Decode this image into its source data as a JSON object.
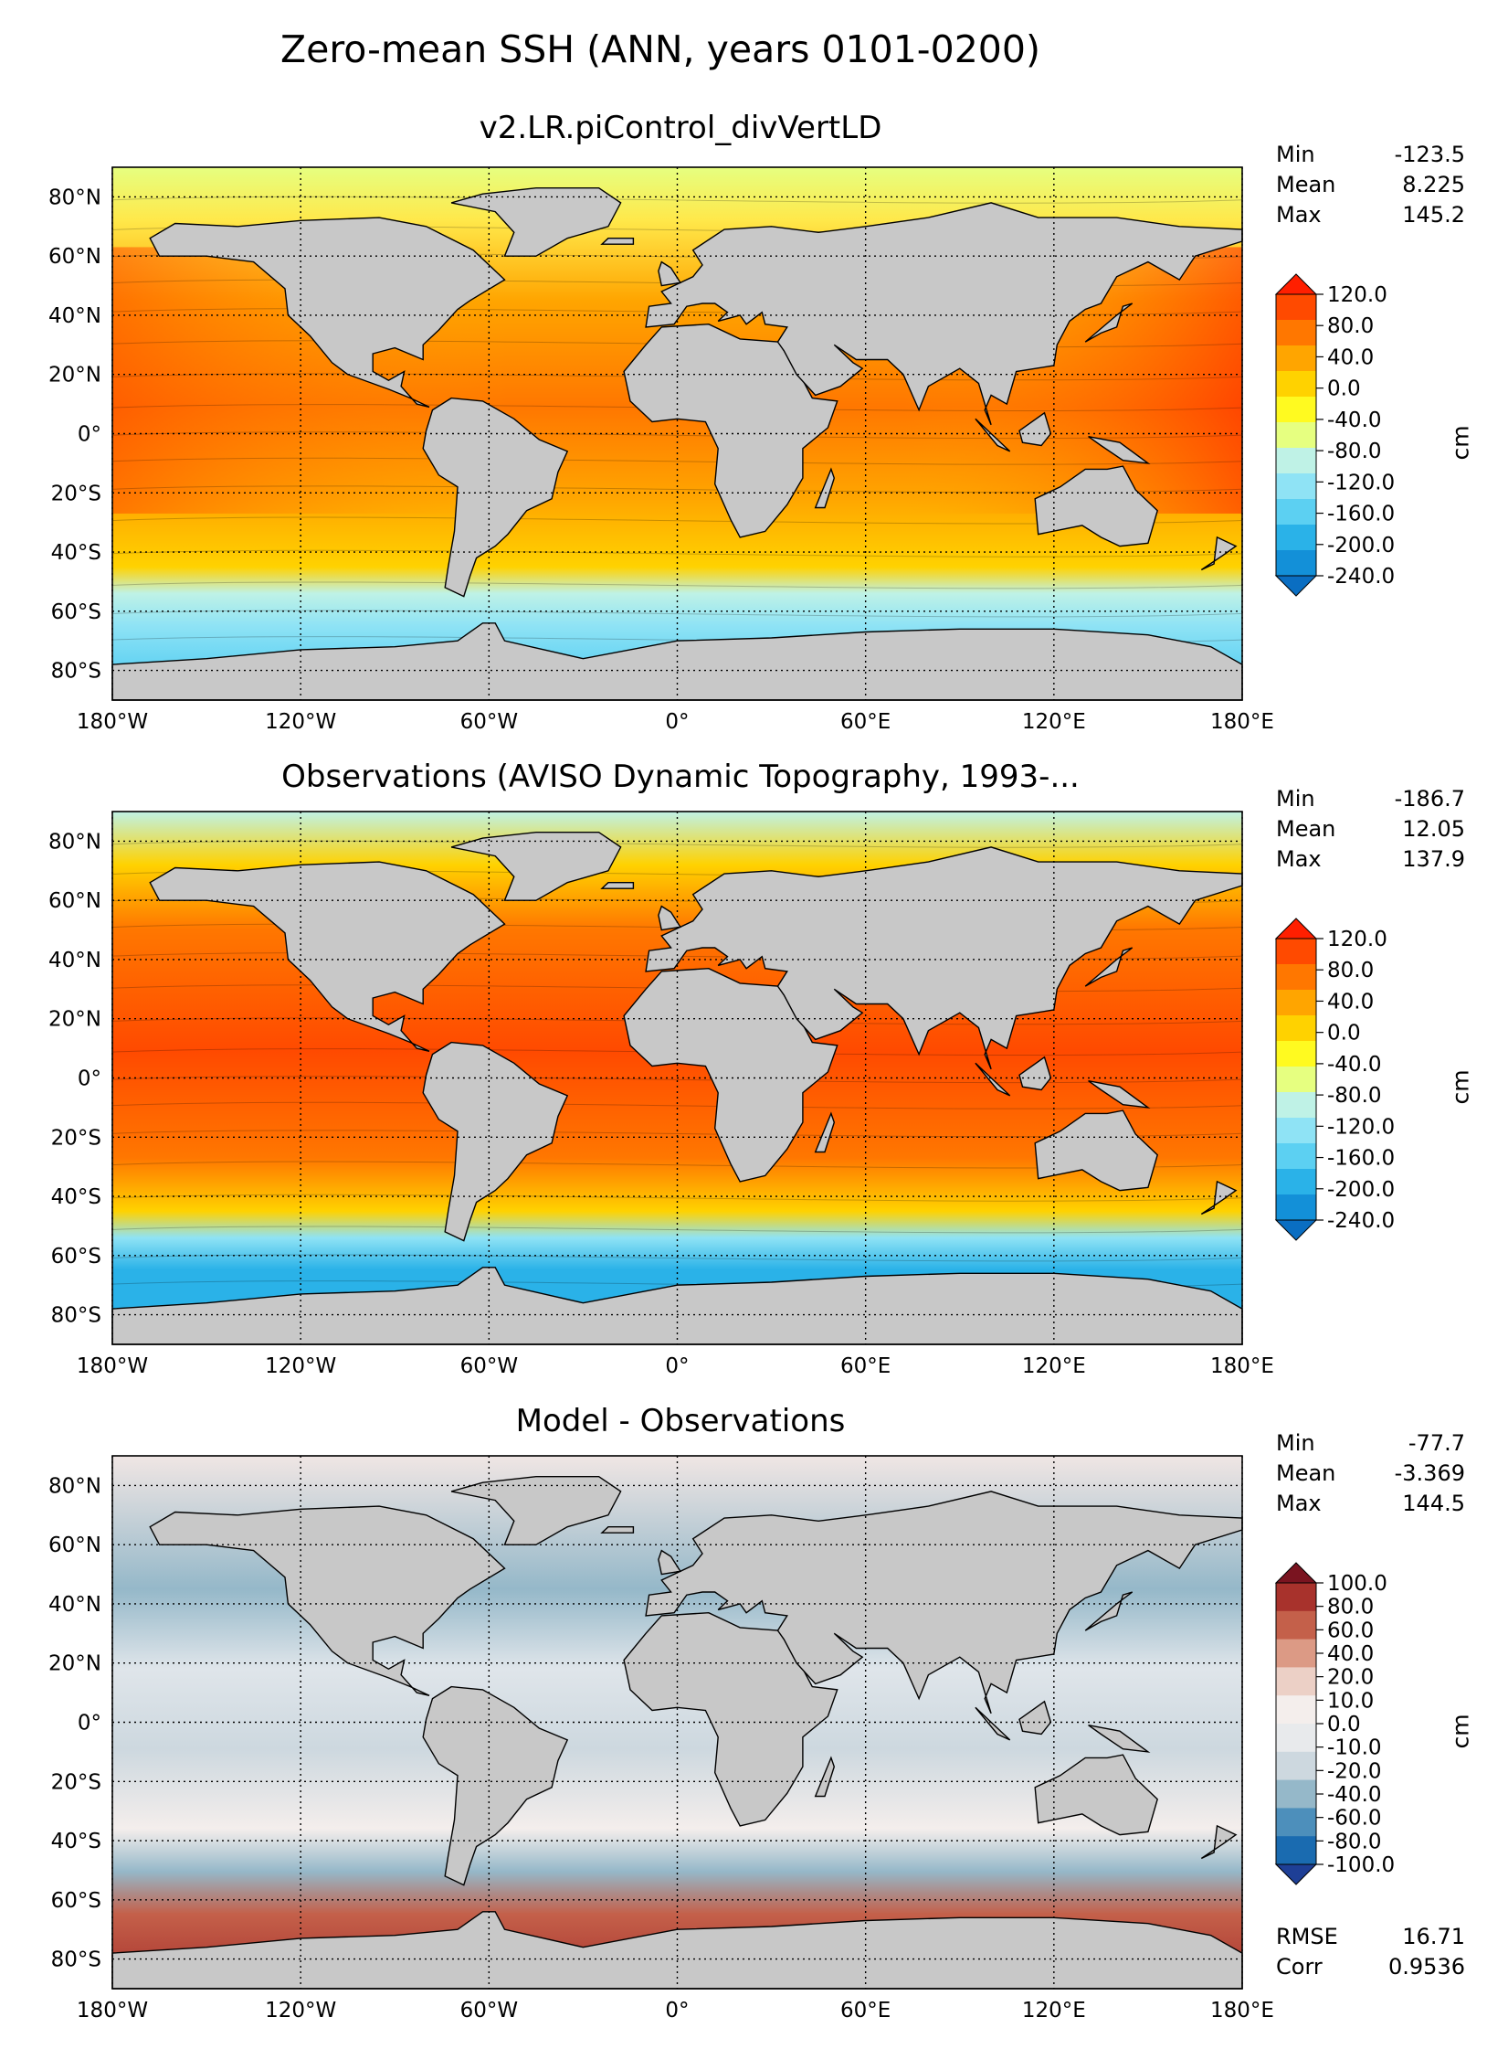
{
  "figure": {
    "title": "Zero-mean SSH (ANN, years 0101-0200)"
  },
  "axes": {
    "lon_ticks": [
      "180°W",
      "120°W",
      "60°W",
      "0°",
      "60°E",
      "120°E",
      "180°E"
    ],
    "lat_ticks": [
      "80°N",
      "60°N",
      "40°N",
      "20°N",
      "0°",
      "20°S",
      "40°S",
      "60°S",
      "80°S"
    ]
  },
  "panels": [
    {
      "title": "v2.LR.piControl_divVertLD",
      "stats": [
        {
          "label": "Min",
          "value": "-123.5"
        },
        {
          "label": "Mean",
          "value": "8.225"
        },
        {
          "label": "Max",
          "value": "145.2"
        }
      ],
      "colorbar": {
        "unit": "cm",
        "labels": [
          "120.0",
          "80.0",
          "40.0",
          "0.0",
          "-40.0",
          "-80.0",
          "-120.0",
          "-160.0",
          "-200.0",
          "-240.0"
        ],
        "colors": [
          "#ff1f00",
          "#ff4a00",
          "#ff7700",
          "#ffa500",
          "#ffd200",
          "#fffa20",
          "#e6ff80",
          "#bff2e6",
          "#8fe3f5",
          "#5cd0f2",
          "#2ab2e8",
          "#1390d8",
          "#0a6ec2"
        ]
      }
    },
    {
      "title": "Observations (AVISO Dynamic Topography, 1993-...",
      "stats": [
        {
          "label": "Min",
          "value": "-186.7"
        },
        {
          "label": "Mean",
          "value": "12.05"
        },
        {
          "label": "Max",
          "value": "137.9"
        }
      ],
      "colorbar": {
        "unit": "cm",
        "labels": [
          "120.0",
          "80.0",
          "40.0",
          "0.0",
          "-40.0",
          "-80.0",
          "-120.0",
          "-160.0",
          "-200.0",
          "-240.0"
        ],
        "colors": [
          "#ff1f00",
          "#ff4a00",
          "#ff7700",
          "#ffa500",
          "#ffd200",
          "#fffa20",
          "#e6ff80",
          "#bff2e6",
          "#8fe3f5",
          "#5cd0f2",
          "#2ab2e8",
          "#1390d8",
          "#0a6ec2"
        ]
      }
    },
    {
      "title": "Model - Observations",
      "stats": [
        {
          "label": "Min",
          "value": "-77.7"
        },
        {
          "label": "Mean",
          "value": "-3.369"
        },
        {
          "label": "Max",
          "value": "144.5"
        }
      ],
      "extra_stats": [
        {
          "label": "RMSE",
          "value": "16.71"
        },
        {
          "label": "Corr",
          "value": "0.9536"
        }
      ],
      "colorbar": {
        "unit": "cm",
        "labels": [
          "100.0",
          "80.0",
          "60.0",
          "40.0",
          "20.0",
          "10.0",
          "0.0",
          "-10.0",
          "-20.0",
          "-40.0",
          "-60.0",
          "-80.0",
          "-100.0"
        ],
        "colors": [
          "#7a1420",
          "#a8322c",
          "#c4604a",
          "#dc9a85",
          "#ecd0c6",
          "#f4eeec",
          "#e8eaec",
          "#cdd8df",
          "#95b8c9",
          "#4d8fbb",
          "#1a6bb0",
          "#1e3f96"
        ]
      }
    }
  ],
  "colors": {
    "land": "#c8c8c8",
    "no_data": "#ffffff",
    "grid": "#000000"
  }
}
